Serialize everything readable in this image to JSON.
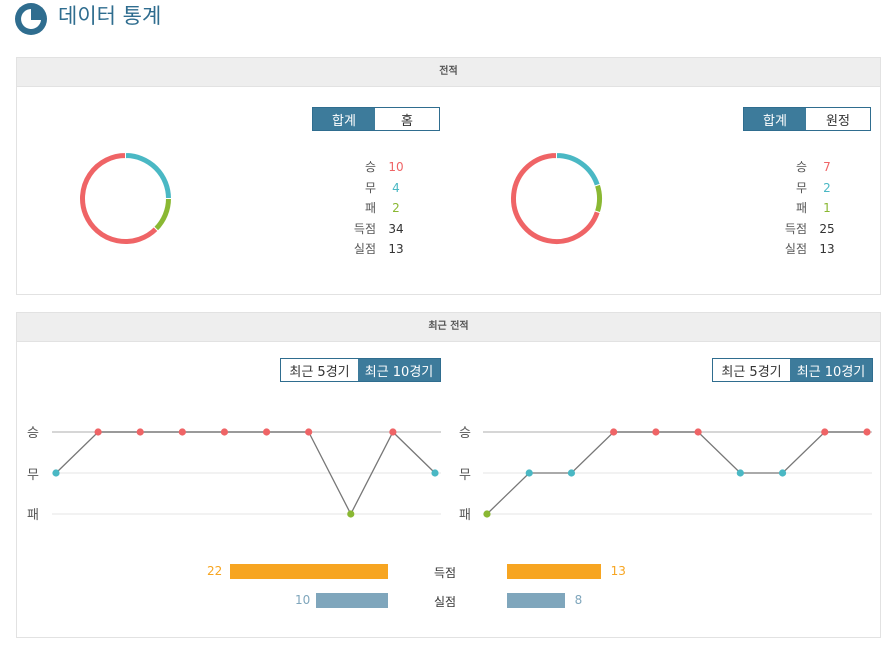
{
  "page": {
    "title": "데이터 통계"
  },
  "colors": {
    "win": "#ef6466",
    "draw": "#4ab8c4",
    "loss": "#8ab833",
    "goals": "#f7a521",
    "conceded": "#7fa6bc",
    "accent": "#3d7b9b"
  },
  "record": {
    "title": "전적",
    "left": {
      "tabs": [
        "합계",
        "홈"
      ],
      "active_tab": 0,
      "stats": [
        {
          "label": "승",
          "value": "10"
        },
        {
          "label": "무",
          "value": "4"
        },
        {
          "label": "패",
          "value": "2"
        },
        {
          "label": "득점",
          "value": "34"
        },
        {
          "label": "실점",
          "value": "13"
        }
      ],
      "donut": {
        "win": 10,
        "draw": 4,
        "loss": 2
      }
    },
    "right": {
      "tabs": [
        "합계",
        "원정"
      ],
      "active_tab": 0,
      "stats": [
        {
          "label": "승",
          "value": "7"
        },
        {
          "label": "무",
          "value": "2"
        },
        {
          "label": "패",
          "value": "1"
        },
        {
          "label": "득점",
          "value": "25"
        },
        {
          "label": "실점",
          "value": "13"
        }
      ],
      "donut": {
        "win": 7,
        "draw": 2,
        "loss": 1
      }
    }
  },
  "recent": {
    "title": "최근 전적",
    "tabs": [
      "최근 5경기",
      "최근 10경기"
    ],
    "active_tab": 1,
    "axis_labels": [
      "승",
      "무",
      "패"
    ],
    "left_results": [
      "D",
      "W",
      "W",
      "W",
      "W",
      "W",
      "W",
      "L",
      "W",
      "D"
    ],
    "right_results": [
      "L",
      "D",
      "D",
      "W",
      "W",
      "W",
      "D",
      "D",
      "W",
      "W"
    ],
    "bars": {
      "goals": {
        "label": "득점",
        "left": 22,
        "right": 13
      },
      "conceded": {
        "label": "실점",
        "left": 10,
        "right": 8
      }
    }
  }
}
